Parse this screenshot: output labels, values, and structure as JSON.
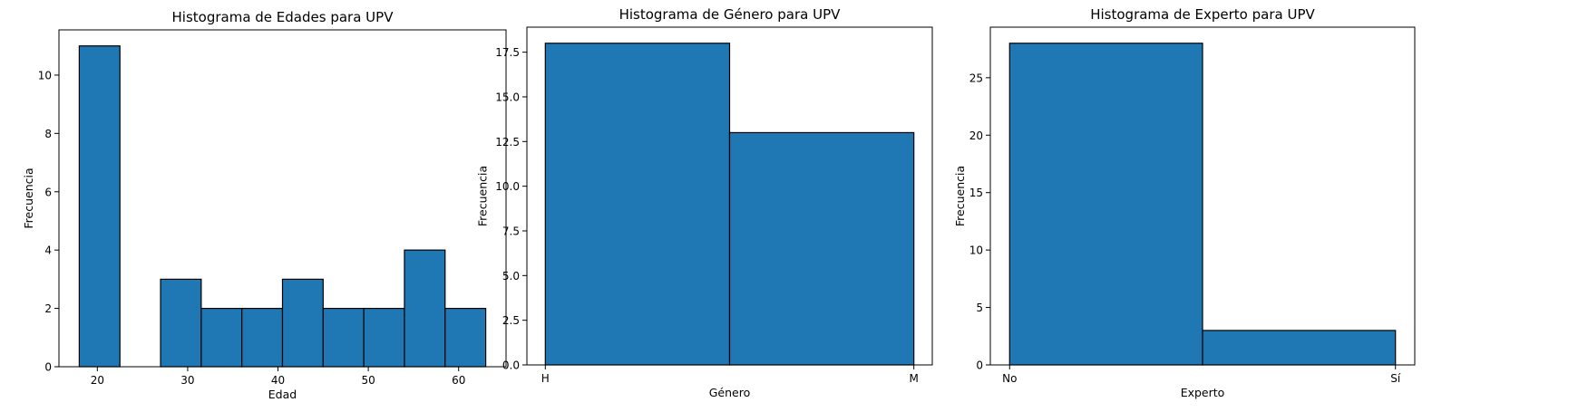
{
  "chart_data": [
    {
      "type": "bar",
      "title": "Histograma de Edades para UPV",
      "xlabel": "Edad",
      "ylabel": "Frecuencia",
      "bin_edges": [
        18,
        22.5,
        27,
        31.5,
        36,
        40.5,
        45,
        49.5,
        54,
        58.5,
        63
      ],
      "values": [
        11,
        0,
        3,
        2,
        2,
        3,
        2,
        2,
        4,
        2
      ],
      "xlim": [
        15.75,
        65.25
      ],
      "ylim": [
        0,
        11.55
      ],
      "xticks": [
        20,
        30,
        40,
        50,
        60
      ],
      "xtick_labels": [
        "20",
        "30",
        "40",
        "50",
        "60"
      ],
      "yticks": [
        0,
        2,
        4,
        6,
        8,
        10
      ],
      "ytick_labels": [
        "0",
        "2",
        "4",
        "6",
        "8",
        "10"
      ],
      "color": "#1f77b4",
      "edgecolor": "#000000",
      "grid": false
    },
    {
      "type": "bar",
      "title": "Histograma de Género para UPV",
      "xlabel": "Género",
      "ylabel": "Frecuencia",
      "bin_edges": [
        0,
        0.5,
        1
      ],
      "values": [
        18,
        13
      ],
      "xlim": [
        -0.05,
        1.05
      ],
      "ylim": [
        0,
        18.9
      ],
      "xticks": [
        0,
        1
      ],
      "xtick_labels": [
        "H",
        "M"
      ],
      "yticks": [
        0,
        2.5,
        5,
        7.5,
        10,
        12.5,
        15,
        17.5
      ],
      "ytick_labels": [
        "0.0",
        "2.5",
        "5.0",
        "7.5",
        "10.0",
        "12.5",
        "15.0",
        "17.5"
      ],
      "color": "#1f77b4",
      "edgecolor": "#000000",
      "grid": false
    },
    {
      "type": "bar",
      "title": "Histograma de Experto para UPV",
      "xlabel": "Experto",
      "ylabel": "Frecuencia",
      "bin_edges": [
        0,
        0.5,
        1
      ],
      "values": [
        28,
        3
      ],
      "xlim": [
        -0.05,
        1.05
      ],
      "ylim": [
        0,
        29.4
      ],
      "xticks": [
        0,
        1
      ],
      "xtick_labels": [
        "No",
        "Sí"
      ],
      "yticks": [
        0,
        5,
        10,
        15,
        20,
        25
      ],
      "ytick_labels": [
        "0",
        "5",
        "10",
        "15",
        "20",
        "25"
      ],
      "color": "#1f77b4",
      "edgecolor": "#000000",
      "grid": false
    }
  ]
}
